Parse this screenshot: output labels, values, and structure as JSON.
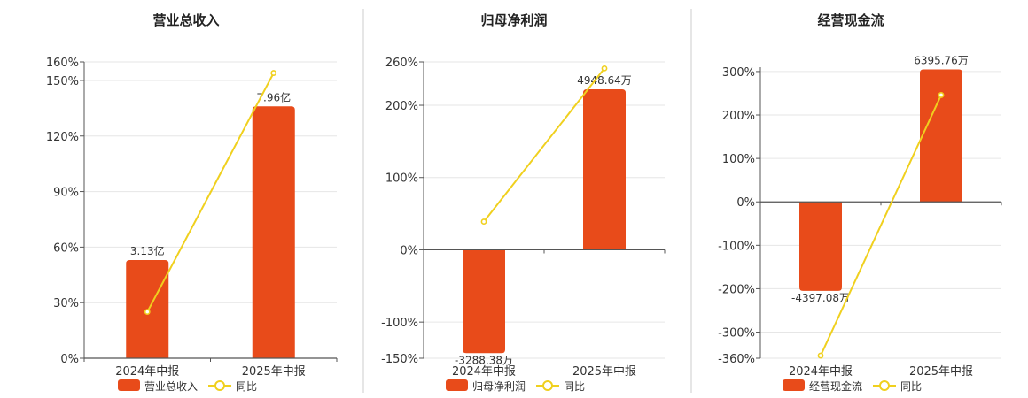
{
  "colors": {
    "bar": "#e84b1a",
    "line": "#f0d01e",
    "grid": "#e6e6e6",
    "axis": "#555555",
    "divider": "#cccccc"
  },
  "chart_data": [
    {
      "type": "bar",
      "title": "营业总收入",
      "categories": [
        "2024年中报",
        "2025年中报"
      ],
      "ylim": [
        0,
        160
      ],
      "yticks": [
        "0%",
        "30%",
        "60%",
        "90%",
        "120%",
        "150%",
        "160%"
      ],
      "ytick_values": [
        0,
        30,
        60,
        90,
        120,
        150,
        160
      ],
      "bar_values": [
        53,
        136
      ],
      "bar_labels": [
        "3.13亿",
        "7.96亿"
      ],
      "line_values": [
        25,
        154
      ],
      "legend": [
        "营业总收入",
        "同比"
      ],
      "legend_placement": "bottom",
      "grid": true
    },
    {
      "type": "bar",
      "title": "归母净利润",
      "categories": [
        "2024年中报",
        "2025年中报"
      ],
      "ylim": [
        -150,
        260
      ],
      "yticks": [
        "-150%",
        "-100%",
        "0%",
        "100%",
        "200%",
        "260%"
      ],
      "ytick_values": [
        -150,
        -100,
        0,
        100,
        200,
        260
      ],
      "bar_values": [
        -143,
        222
      ],
      "bar_labels": [
        "-3288.38万",
        "4948.64万"
      ],
      "line_values": [
        39,
        251
      ],
      "legend": [
        "归母净利润",
        "同比"
      ],
      "legend_placement": "bottom",
      "grid": true
    },
    {
      "type": "bar",
      "title": "经营现金流",
      "categories": [
        "2024年中报",
        "2025年中报"
      ],
      "ylim": [
        -360,
        310
      ],
      "yticks": [
        "-360%",
        "-300%",
        "-200%",
        "-100%",
        "0%",
        "100%",
        "200%",
        "300%"
      ],
      "ytick_values": [
        -360,
        -300,
        -200,
        -100,
        0,
        100,
        200,
        300
      ],
      "bar_values": [
        -205,
        305
      ],
      "bar_labels": [
        "-4397.08万",
        "6395.76万"
      ],
      "line_values": [
        -354,
        246
      ],
      "legend": [
        "经营现金流",
        "同比"
      ],
      "legend_placement": "bottom",
      "grid": true
    }
  ]
}
